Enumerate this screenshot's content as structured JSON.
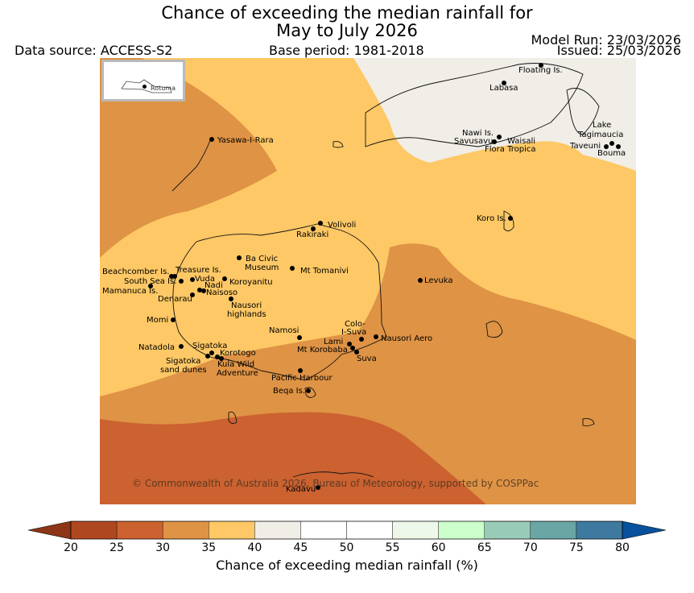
{
  "title": {
    "line1": "Chance of exceeding the median rainfall for",
    "line2": "May to July 2026"
  },
  "header": {
    "data_source": "Data source: ACCESS-S2",
    "base_period": "Base period: 1981-2018",
    "model_run": "Model Run: 23/03/2026",
    "issued": "Issued: 25/03/2026"
  },
  "inset": {
    "label": "Rotuma"
  },
  "places": {
    "yasawa": "Yasawa-I-Rara",
    "floating": "Floating Is.",
    "labasa": "Labasa",
    "nawi": "Nawi Is.",
    "savusavu": "Savusavu",
    "waisali": "Waisali",
    "flora": "Flora Tropica",
    "lake": "Lake",
    "tagimaucia": "Tagimaucia",
    "taveuni": "Taveuni",
    "bouma": "Bouma",
    "koro": "Koro Is.",
    "volivoli": "Volivoli",
    "rakiraki": "Rakiraki",
    "ba_civic_1": "Ba Civic",
    "ba_civic_2": "Museum",
    "tomanivi": "Mt Tomanivi",
    "levuka": "Levuka",
    "beachcomber": "Beachcomber Is.",
    "treasure": "Treasure Is.",
    "southsea": "South Sea Is.",
    "vuda": "Vuda",
    "koroyanitu": "Koroyanitu",
    "nadi": "Nadi",
    "mamanuca": "Mamanuca Is.",
    "naisoso": "Naisoso",
    "denarau": "Denarau",
    "nausori_high_1": "Nausori",
    "nausori_high_2": "highlands",
    "momi": "Momi",
    "colo_1": "Colo-",
    "colo_2": "I-Suva",
    "namosi": "Namosi",
    "lami": "Lami",
    "nausori_aero": "Nausori Aero",
    "korobaba": "Mt Korobaba",
    "natadola": "Natadola",
    "sigatoka": "Sigatoka",
    "korotogo": "Korotogo",
    "suva": "Suva",
    "sigatoka_dunes_1": "Sigatoka",
    "sigatoka_dunes_2": "sand dunes",
    "kula_1": "Kula Wild",
    "kula_2": "Adventure",
    "pacific": "Pacific Harbour",
    "beqa": "Beqa Is.",
    "kadavu": "Kadavu"
  },
  "copyright": "© Commonwealth of Australia 2026, Bureau of Meteorology, supported by COSPPac",
  "colorbar": {
    "label": "Chance of exceeding median rainfall (%)",
    "ticks": [
      "20",
      "25",
      "30",
      "35",
      "40",
      "45",
      "50",
      "55",
      "60",
      "65",
      "70",
      "75",
      "80"
    ],
    "under_color": "#8c3517",
    "over_color": "#08519c",
    "colors": [
      "#b0481f",
      "#cb6230",
      "#df9345",
      "#fdc865",
      "#f1ede7",
      "#ffffff",
      "#ffffff",
      "#eef8ea",
      "#ccffcc",
      "#99ccb8",
      "#69a6a4",
      "#3e7a9f"
    ]
  },
  "legend_colors": {
    "dark_orange": "#cb6230",
    "orange": "#df9345",
    "yellow": "#fdc865",
    "neutral": "#f1ede7"
  }
}
